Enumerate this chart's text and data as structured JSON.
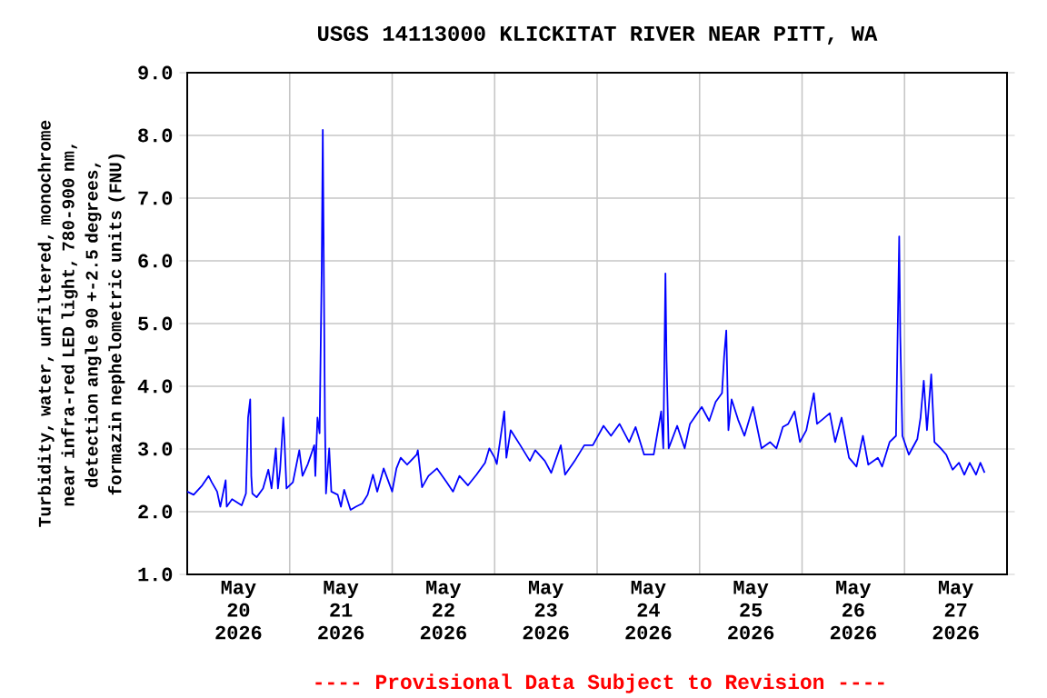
{
  "chart_data": {
    "type": "line",
    "title": "USGS 14113000 KLICKITAT RIVER NEAR PITT, WA",
    "ylabel": "Turbidity, water, unfiltered, monochrome near infra-red LED light, 780-900 nm, detection angle 90 +-2.5 degrees, formazin nephelometric units (FNU)",
    "annotations": [
      "---- Provisional Data Subject to Revision ----"
    ],
    "color": "#0000ff",
    "grid": true,
    "xlim": [
      "2026-05-20T00:00",
      "2026-05-28T00:00"
    ],
    "xticks": [
      {
        "value": "2026-05-20T00:00",
        "label": null
      },
      {
        "value": "2026-05-20T12:00",
        "label": "May 20 2026"
      },
      {
        "value": "2026-05-21T00:00",
        "label": null
      },
      {
        "value": "2026-05-21T12:00",
        "label": "May 21 2026"
      },
      {
        "value": "2026-05-22T00:00",
        "label": null
      },
      {
        "value": "2026-05-22T12:00",
        "label": "May 22 2026"
      },
      {
        "value": "2026-05-23T00:00",
        "label": null
      },
      {
        "value": "2026-05-23T12:00",
        "label": "May 23 2026"
      },
      {
        "value": "2026-05-24T00:00",
        "label": null
      },
      {
        "value": "2026-05-24T12:00",
        "label": "May 24 2026"
      },
      {
        "value": "2026-05-25T00:00",
        "label": null
      },
      {
        "value": "2026-05-25T12:00",
        "label": "May 25 2026"
      },
      {
        "value": "2026-05-26T00:00",
        "label": null
      },
      {
        "value": "2026-05-26T12:00",
        "label": "May 26 2026"
      },
      {
        "value": "2026-05-27T00:00",
        "label": null
      },
      {
        "value": "2026-05-27T12:00",
        "label": "May 27 2026"
      },
      {
        "value": "2026-05-28T00:00",
        "label": null
      }
    ],
    "ylim": [
      1,
      9
    ],
    "yticks": [
      {
        "value": 1,
        "label": "1.0"
      },
      {
        "value": 2,
        "label": "2.0"
      },
      {
        "value": 3,
        "label": "3.0"
      },
      {
        "value": 4,
        "label": "4.0"
      },
      {
        "value": 5,
        "label": "5.0"
      },
      {
        "value": 6,
        "label": "6.0"
      },
      {
        "value": 7,
        "label": "7.0"
      },
      {
        "value": 8,
        "label": "8.0"
      },
      {
        "value": 9,
        "label": "9.0"
      }
    ],
    "x": [
      "2026-05-20T00:00",
      "2026-05-20T01:30",
      "2026-05-20T03:30",
      "2026-05-20T05:00",
      "2026-05-20T05:45",
      "2026-05-20T07:00",
      "2026-05-20T07:45",
      "2026-05-20T09:00",
      "2026-05-20T09:15",
      "2026-05-20T10:30",
      "2026-05-20T12:45",
      "2026-05-20T13:45",
      "2026-05-20T14:15",
      "2026-05-20T14:45",
      "2026-05-20T15:00",
      "2026-05-20T15:15",
      "2026-05-20T16:15",
      "2026-05-20T17:45",
      "2026-05-20T19:00",
      "2026-05-20T19:45",
      "2026-05-20T20:45",
      "2026-05-20T21:15",
      "2026-05-20T21:45",
      "2026-05-20T22:30",
      "2026-05-20T22:45",
      "2026-05-20T23:15",
      "2026-05-21T00:45",
      "2026-05-21T02:15",
      "2026-05-21T03:00",
      "2026-05-21T04:15",
      "2026-05-21T05:45",
      "2026-05-21T06:00",
      "2026-05-21T06:30",
      "2026-05-21T07:00",
      "2026-05-21T07:30",
      "2026-05-21T07:45",
      "2026-05-21T08:15",
      "2026-05-21T08:30",
      "2026-05-21T09:15",
      "2026-05-21T09:45",
      "2026-05-21T11:15",
      "2026-05-21T12:00",
      "2026-05-21T12:45",
      "2026-05-21T14:15",
      "2026-05-21T15:30",
      "2026-05-21T17:00",
      "2026-05-21T18:15",
      "2026-05-21T19:30",
      "2026-05-21T20:30",
      "2026-05-21T22:00",
      "2026-05-22T00:00",
      "2026-05-22T01:00",
      "2026-05-22T02:00",
      "2026-05-22T03:30",
      "2026-05-22T05:45",
      "2026-05-22T06:00",
      "2026-05-22T07:00",
      "2026-05-22T08:30",
      "2026-05-22T10:30",
      "2026-05-22T12:45",
      "2026-05-22T14:15",
      "2026-05-22T15:45",
      "2026-05-22T17:45",
      "2026-05-22T19:45",
      "2026-05-22T21:45",
      "2026-05-22T22:45",
      "2026-05-23T00:00",
      "2026-05-23T00:30",
      "2026-05-23T02:15",
      "2026-05-23T02:45",
      "2026-05-23T03:45",
      "2026-05-23T06:00",
      "2026-05-23T08:15",
      "2026-05-23T09:30",
      "2026-05-23T11:45",
      "2026-05-23T13:15",
      "2026-05-23T15:30",
      "2026-05-23T16:30",
      "2026-05-23T18:45",
      "2026-05-23T21:00",
      "2026-05-23T23:00",
      "2026-05-24T01:30",
      "2026-05-24T03:15",
      "2026-05-24T05:15",
      "2026-05-24T07:30",
      "2026-05-24T09:00",
      "2026-05-24T11:00",
      "2026-05-24T13:15",
      "2026-05-24T15:00",
      "2026-05-24T15:30",
      "2026-05-24T16:00",
      "2026-05-24T16:15",
      "2026-05-24T16:45",
      "2026-05-24T18:45",
      "2026-05-24T20:30",
      "2026-05-24T21:45",
      "2026-05-25T00:30",
      "2026-05-25T02:15",
      "2026-05-25T03:45",
      "2026-05-25T05:15",
      "2026-05-25T05:45",
      "2026-05-25T06:15",
      "2026-05-25T06:45",
      "2026-05-25T07:30",
      "2026-05-25T09:00",
      "2026-05-25T10:30",
      "2026-05-25T12:30",
      "2026-05-25T14:30",
      "2026-05-25T16:30",
      "2026-05-25T18:00",
      "2026-05-25T19:30",
      "2026-05-25T20:45",
      "2026-05-25T22:15",
      "2026-05-25T23:30",
      "2026-05-26T01:00",
      "2026-05-26T02:45",
      "2026-05-26T03:30",
      "2026-05-26T04:45",
      "2026-05-26T06:30",
      "2026-05-26T07:45",
      "2026-05-26T09:15",
      "2026-05-26T11:00",
      "2026-05-26T12:45",
      "2026-05-26T14:15",
      "2026-05-26T15:30",
      "2026-05-26T17:45",
      "2026-05-26T18:45",
      "2026-05-26T20:30",
      "2026-05-26T22:00",
      "2026-05-26T22:45",
      "2026-05-26T23:00",
      "2026-05-26T23:30",
      "2026-05-27T01:00",
      "2026-05-27T03:00",
      "2026-05-27T03:45",
      "2026-05-27T04:30",
      "2026-05-27T05:15",
      "2026-05-27T06:15",
      "2026-05-27T07:00",
      "2026-05-27T08:30",
      "2026-05-27T09:45",
      "2026-05-27T11:15",
      "2026-05-27T12:45",
      "2026-05-27T14:00",
      "2026-05-27T15:15",
      "2026-05-27T16:45",
      "2026-05-27T17:45",
      "2026-05-27T18:45"
    ],
    "values": [
      2.32,
      2.27,
      2.42,
      2.57,
      2.47,
      2.32,
      2.08,
      2.5,
      2.08,
      2.2,
      2.1,
      2.29,
      3.5,
      3.79,
      2.57,
      2.29,
      2.23,
      2.37,
      2.67,
      2.37,
      3.01,
      2.37,
      2.67,
      3.5,
      3.18,
      2.37,
      2.47,
      2.98,
      2.57,
      2.76,
      3.06,
      2.57,
      3.5,
      3.25,
      5.9,
      8.09,
      3.45,
      2.29,
      3.01,
      2.32,
      2.27,
      2.08,
      2.35,
      2.03,
      2.08,
      2.13,
      2.27,
      2.59,
      2.32,
      2.69,
      2.32,
      2.69,
      2.86,
      2.75,
      2.91,
      2.98,
      2.39,
      2.57,
      2.69,
      2.47,
      2.32,
      2.57,
      2.42,
      2.59,
      2.78,
      3.01,
      2.86,
      2.76,
      3.6,
      2.86,
      3.3,
      3.06,
      2.81,
      2.98,
      2.81,
      2.62,
      3.06,
      2.59,
      2.81,
      3.06,
      3.06,
      3.37,
      3.21,
      3.4,
      3.11,
      3.35,
      2.91,
      2.91,
      3.6,
      3.01,
      5.8,
      4.43,
      3.01,
      3.37,
      3.01,
      3.4,
      3.67,
      3.45,
      3.75,
      3.89,
      4.48,
      4.89,
      3.3,
      3.79,
      3.47,
      3.21,
      3.67,
      3.01,
      3.11,
      3.01,
      3.35,
      3.4,
      3.6,
      3.11,
      3.3,
      3.89,
      3.4,
      3.47,
      3.57,
      3.11,
      3.5,
      2.86,
      2.72,
      3.21,
      2.75,
      2.86,
      2.72,
      3.11,
      3.21,
      6.39,
      4.8,
      3.21,
      2.91,
      3.16,
      3.5,
      4.09,
      3.3,
      4.19,
      3.11,
      3.01,
      2.91,
      2.67,
      2.78,
      2.59,
      2.78,
      2.59,
      2.78,
      2.62
    ]
  }
}
